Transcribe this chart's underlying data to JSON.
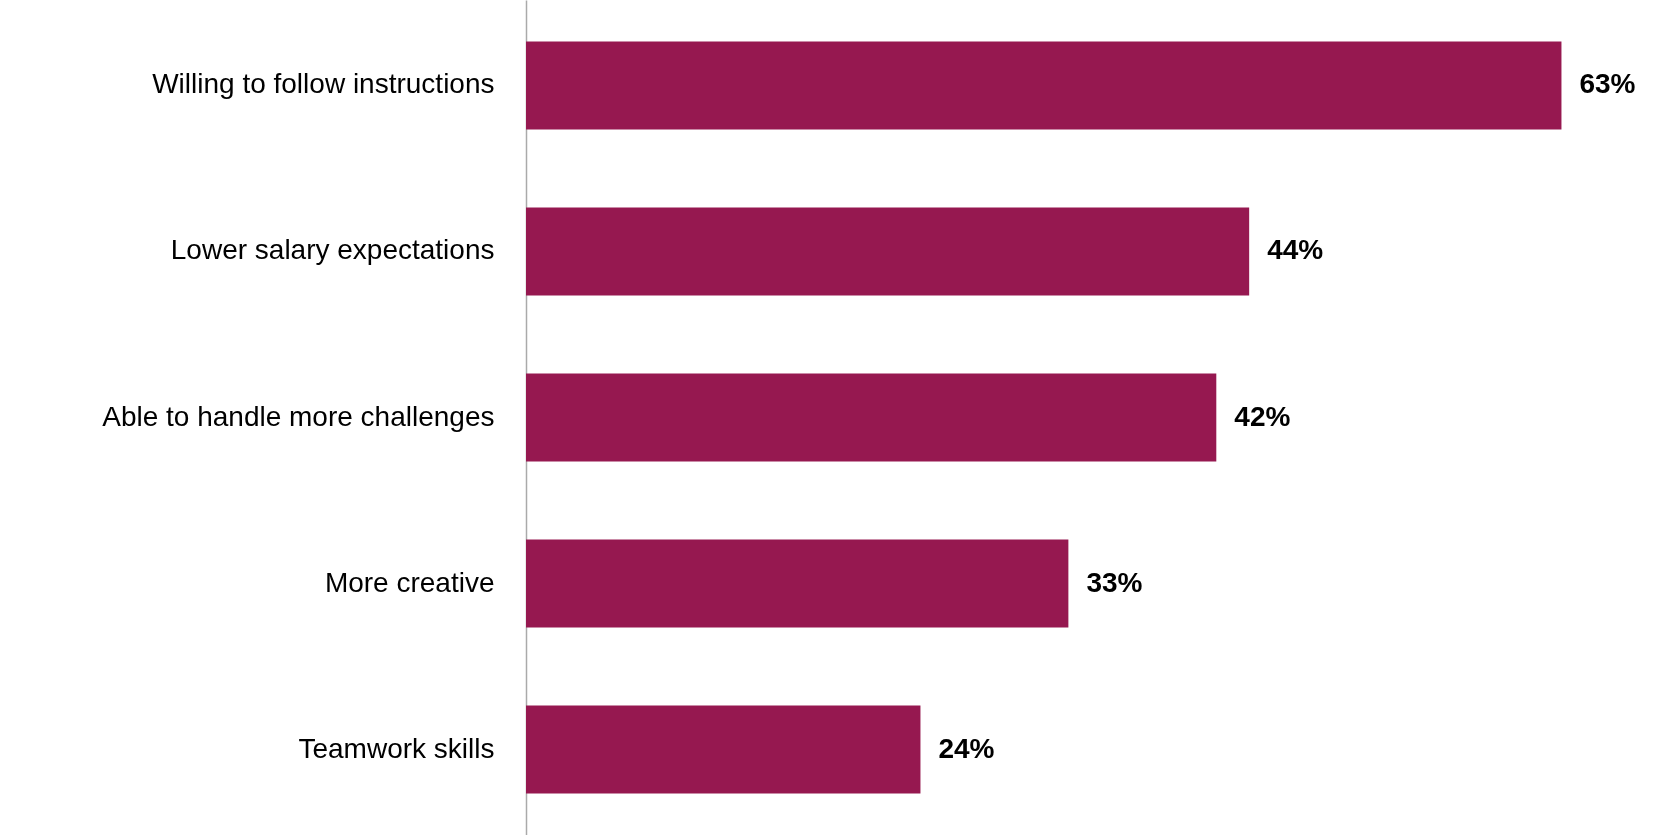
{
  "chart_data": {
    "type": "bar",
    "orientation": "horizontal",
    "categories": [
      "Willing to follow instructions",
      "Lower salary expectations",
      "Able to handle more challenges",
      "More creative",
      "Teamwork skills"
    ],
    "values": [
      63,
      44,
      42,
      33,
      24
    ],
    "value_labels": [
      "63%",
      "44%",
      "42%",
      "33%",
      "24%"
    ],
    "color": "#961850",
    "grid": false
  }
}
